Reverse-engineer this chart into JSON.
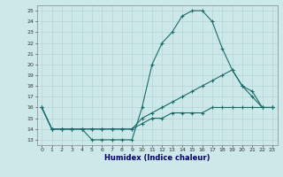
{
  "xlabel": "Humidex (Indice chaleur)",
  "background_color": "#cde8e8",
  "line_color": "#1a6b6b",
  "grid_color": "#b0d0d0",
  "xlim": [
    -0.5,
    23.5
  ],
  "ylim": [
    12.5,
    25.5
  ],
  "xticks": [
    0,
    1,
    2,
    3,
    4,
    5,
    6,
    7,
    8,
    9,
    10,
    11,
    12,
    13,
    14,
    15,
    16,
    17,
    18,
    19,
    20,
    21,
    22,
    23
  ],
  "yticks": [
    13,
    14,
    15,
    16,
    17,
    18,
    19,
    20,
    21,
    22,
    23,
    24,
    25
  ],
  "line1_x": [
    0,
    1,
    2,
    3,
    4,
    5,
    6,
    7,
    8,
    9,
    10,
    11,
    12,
    13,
    14,
    15,
    16,
    17,
    18,
    19,
    20,
    21,
    22,
    23
  ],
  "line1_y": [
    16,
    14,
    14,
    14,
    14,
    13,
    13,
    13,
    13,
    13,
    16,
    20,
    22,
    23,
    24.5,
    25,
    25,
    24,
    21.5,
    19.5,
    18,
    17.5,
    16,
    16
  ],
  "line2_x": [
    0,
    1,
    2,
    3,
    4,
    5,
    6,
    7,
    8,
    9,
    10,
    11,
    12,
    13,
    14,
    15,
    16,
    17,
    18,
    19,
    20,
    21,
    22,
    23
  ],
  "line2_y": [
    16,
    14,
    14,
    14,
    14,
    14,
    14,
    14,
    14,
    14,
    15,
    15.5,
    16,
    16.5,
    17,
    17.5,
    18,
    18.5,
    19,
    19.5,
    18,
    17,
    16,
    16
  ],
  "line3_x": [
    0,
    1,
    2,
    3,
    4,
    5,
    6,
    7,
    8,
    9,
    10,
    11,
    12,
    13,
    14,
    15,
    16,
    17,
    18,
    19,
    20,
    21,
    22,
    23
  ],
  "line3_y": [
    16,
    14,
    14,
    14,
    14,
    14,
    14,
    14,
    14,
    14,
    14.5,
    15,
    15,
    15.5,
    15.5,
    15.5,
    15.5,
    16,
    16,
    16,
    16,
    16,
    16,
    16
  ]
}
